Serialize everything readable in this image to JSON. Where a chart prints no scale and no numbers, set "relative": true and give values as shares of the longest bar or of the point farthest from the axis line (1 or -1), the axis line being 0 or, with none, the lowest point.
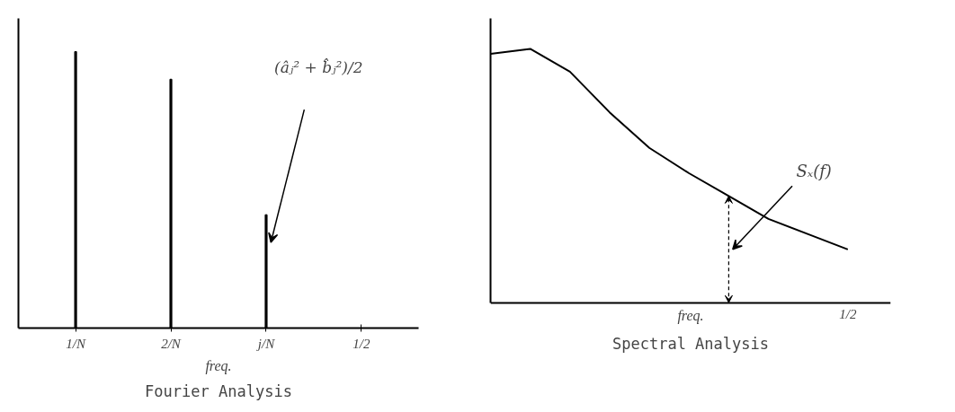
{
  "chart_data": [
    {
      "type": "bar",
      "title": "Fourier Analysis",
      "xlabel": "freq.",
      "relative": true,
      "categories": [
        "1/N",
        "2/N",
        "j/N",
        "1/2"
      ],
      "values": [
        1,
        0.9,
        0.41,
        null
      ],
      "color": "#000000",
      "annotations": [
        "(âⱼ² + b̂ⱼ²)/2"
      ],
      "grid": false
    },
    {
      "type": "line",
      "title": "Spectral Analysis",
      "xlabel": "freq.",
      "relative": true,
      "categories": [
        null,
        null,
        null,
        null,
        null,
        null,
        null,
        null,
        null,
        null
      ],
      "values": [
        0.98,
        1,
        0.91,
        0.75,
        0.61,
        0.51,
        0.42,
        0.33,
        0.27,
        0.21
      ],
      "color": "#000000",
      "annotations": [
        "Sₓ(f)",
        "1/2"
      ],
      "grid": false,
      "line_style": "solid"
    }
  ]
}
